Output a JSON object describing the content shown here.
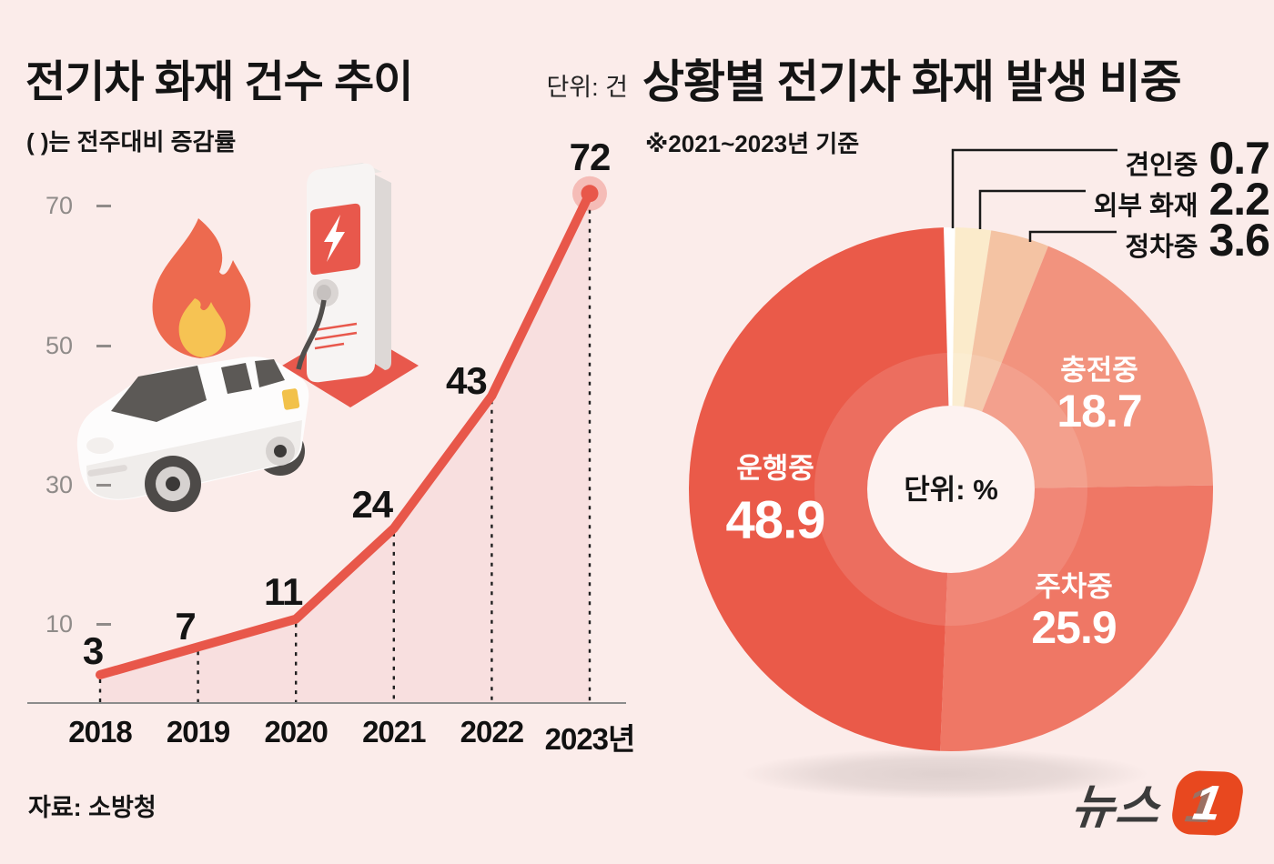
{
  "page": {
    "background": "#FBECEA",
    "accent_red": "#E8584A",
    "logo": {
      "text": "뉴스",
      "badge_number": "1",
      "badge_color": "#E8481F"
    }
  },
  "left_chart": {
    "title": "전기차 화재 건수 추이",
    "unit": "단위: 건",
    "note": "( )는 전주대비 증감률",
    "source": "자료: 소방청"
  },
  "right_chart": {
    "title": "상황별 전기차 화재 발생 비중",
    "note": "※2021~2023년 기준",
    "center_label": "단위: %"
  },
  "chart_data": [
    {
      "type": "line",
      "title": "전기차 화재 건수 추이",
      "unit": "건",
      "categories": [
        "2018",
        "2019",
        "2020",
        "2021",
        "2022",
        "2023년"
      ],
      "values": [
        3,
        7,
        11,
        24,
        43,
        72
      ],
      "y_ticks": [
        70,
        50,
        30,
        10
      ],
      "ylim": [
        0,
        78
      ],
      "grid": "dotted-vertical-per-point",
      "line_color": "#E8574A",
      "area_color": "#F8DFDF",
      "marker": "last-point-only"
    },
    {
      "type": "pie",
      "donut": true,
      "title": "상황별 전기차 화재 발생 비중",
      "unit": "%",
      "start_at_top": true,
      "clockwise": true,
      "slices": [
        {
          "label": "견인중",
          "value": 0.7,
          "color": "#FFFFFF",
          "callout": true
        },
        {
          "label": "외부 화재",
          "value": 2.2,
          "color": "#FBEBCB",
          "callout": true
        },
        {
          "label": "정차중",
          "value": 3.6,
          "color": "#F4C3A3",
          "callout": true
        },
        {
          "label": "충전중",
          "value": 18.7,
          "color": "#F2937E",
          "callout": false
        },
        {
          "label": "주차중",
          "value": 25.9,
          "color": "#EF7765",
          "callout": false
        },
        {
          "label": "운행중",
          "value": 48.9,
          "color": "#EA5A49",
          "callout": false
        }
      ]
    }
  ]
}
